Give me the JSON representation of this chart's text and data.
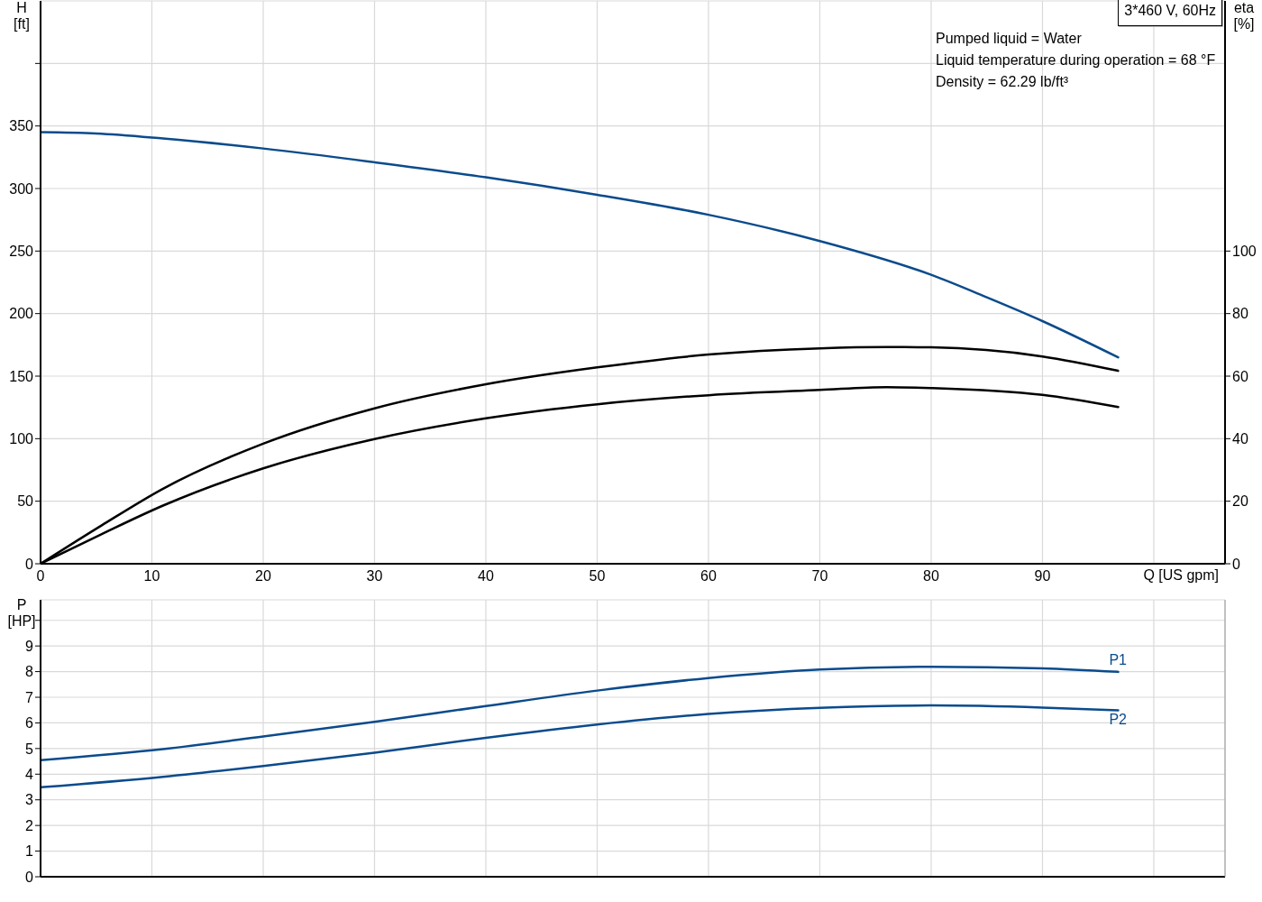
{
  "chart_data": [
    {
      "type": "line",
      "title": "3*460 V, 60Hz",
      "xlabel": "Q [US gpm]",
      "ylabel": "H\n[ft]",
      "y2label": "eta\n[%]",
      "annotations": [
        "Pumped liquid = Water",
        "Liquid temperature during operation = 68 °F",
        "Density = 62.29 lb/ft³"
      ],
      "xlim": [
        0,
        106.4
      ],
      "xticks": [
        0,
        10,
        20,
        30,
        40,
        50,
        60,
        70,
        80,
        90,
        {
          "value": 100,
          "label": null
        }
      ],
      "ylim": [
        0,
        450
      ],
      "yticks": [
        0,
        50,
        100,
        150,
        200,
        250,
        300,
        350,
        {
          "value": 400,
          "label": null
        }
      ],
      "y2lim": [
        0,
        180
      ],
      "y2ticks": [
        0,
        20,
        40,
        60,
        80,
        100
      ],
      "grid": true,
      "series": [
        {
          "color": "#0a4b8c",
          "x": [
            0,
            5,
            11,
            20,
            30,
            40,
            50,
            60,
            70,
            80,
            85,
            90,
            96.8
          ],
          "values": [
            345,
            344,
            340,
            332,
            321,
            309,
            295,
            279,
            258,
            231,
            213,
            194,
            165
          ]
        },
        {
          "color": "#000000",
          "axis": "y2",
          "x": [
            0,
            5.5,
            11,
            20,
            30,
            40,
            50,
            60,
            70,
            76,
            80,
            90,
            96.8
          ],
          "values": [
            0,
            12.3,
            24,
            38.4,
            49.7,
            57.4,
            62.8,
            66.9,
            68.9,
            69.3,
            69.2,
            66.3,
            61.7
          ]
        },
        {
          "color": "#000000",
          "axis": "y2",
          "x": [
            0,
            5.5,
            11,
            20,
            30,
            40,
            50,
            60,
            70,
            76,
            80,
            90,
            96.8
          ],
          "values": [
            0,
            9.5,
            18.6,
            30.5,
            39.9,
            46.5,
            51,
            53.9,
            55.6,
            56.5,
            56.2,
            54,
            50.1
          ]
        }
      ]
    },
    {
      "type": "line",
      "ylabel": "P\n[HP]",
      "xlim": [
        0,
        106.4
      ],
      "xticks": [
        0,
        10,
        20,
        30,
        40,
        50,
        60,
        70,
        80,
        90,
        100
      ],
      "tick_labels": "y",
      "ylim": [
        0,
        10.8
      ],
      "yticks": [
        0,
        1,
        2,
        3,
        4,
        5,
        6,
        7,
        8,
        9,
        {
          "value": 10,
          "label": null
        }
      ],
      "grid": true,
      "series": [
        {
          "name": "P1",
          "color": "#0a4b8c",
          "x": [
            0,
            11,
            20,
            30,
            40,
            50,
            60,
            70,
            80,
            90,
            96.8
          ],
          "values": [
            4.55,
            4.98,
            5.47,
            6.04,
            6.66,
            7.26,
            7.75,
            8.08,
            8.19,
            8.13,
            7.99
          ]
        },
        {
          "name": "P2",
          "color": "#0a4b8c",
          "x": [
            0,
            11,
            20,
            30,
            40,
            50,
            60,
            70,
            80,
            90,
            96.8
          ],
          "values": [
            3.49,
            3.9,
            4.32,
            4.84,
            5.42,
            5.94,
            6.35,
            6.59,
            6.68,
            6.6,
            6.49
          ]
        }
      ]
    }
  ]
}
